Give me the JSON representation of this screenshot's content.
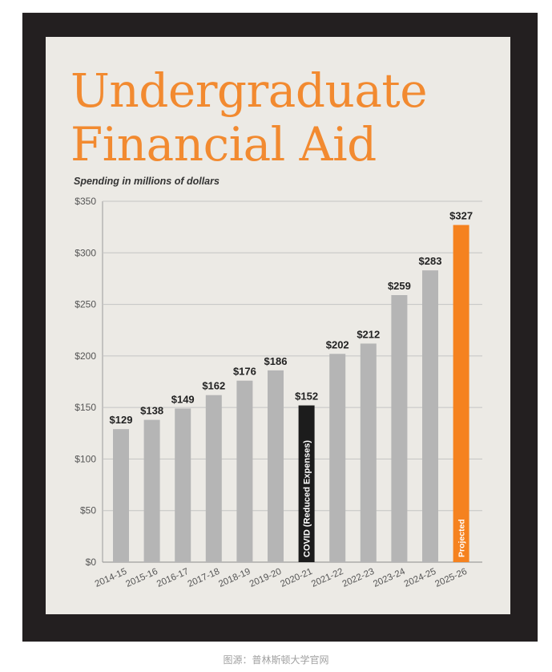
{
  "title_lines": [
    "Undergraduate",
    "Financial Aid"
  ],
  "subtitle": "Spending in millions of dollars",
  "caption": "图源：普林斯顿大学官网",
  "colors": {
    "title": "#f28a30",
    "bar_default": "#b5b5b5",
    "bar_covid": "#1c1c1c",
    "bar_projected": "#f5821f",
    "panel": "#eceae5",
    "frame": "#231f20"
  },
  "chart_data": {
    "type": "bar",
    "title": "Undergraduate Financial Aid",
    "subtitle": "Spending in millions of dollars",
    "categories": [
      "2014-15",
      "2015-16",
      "2016-17",
      "2017-18",
      "2018-19",
      "2019-20",
      "2020-21",
      "2021-22",
      "2022-23",
      "2023-24",
      "2024-25",
      "2025-26"
    ],
    "values": [
      129,
      138,
      149,
      162,
      176,
      186,
      152,
      202,
      212,
      259,
      283,
      327
    ],
    "value_labels": [
      "$129",
      "$138",
      "$149",
      "$162",
      "$176",
      "$186",
      "$152",
      "$202",
      "$212",
      "$259",
      "$283",
      "$327"
    ],
    "bar_kinds": [
      "default",
      "default",
      "default",
      "default",
      "default",
      "default",
      "covid",
      "default",
      "default",
      "default",
      "default",
      "projected"
    ],
    "bar_annotations": [
      "",
      "",
      "",
      "",
      "",
      "",
      "COVID (Reduced Expenses)",
      "",
      "",
      "",
      "",
      "Projected"
    ],
    "y_ticks": [
      0,
      50,
      100,
      150,
      200,
      250,
      300,
      350
    ],
    "y_tick_labels": [
      "$0",
      "$50",
      "$100",
      "$150",
      "$200",
      "$250",
      "$300",
      "$350"
    ],
    "ylim": [
      0,
      350
    ],
    "xlabel": "",
    "ylabel": "",
    "grid": true,
    "legend": "none"
  }
}
